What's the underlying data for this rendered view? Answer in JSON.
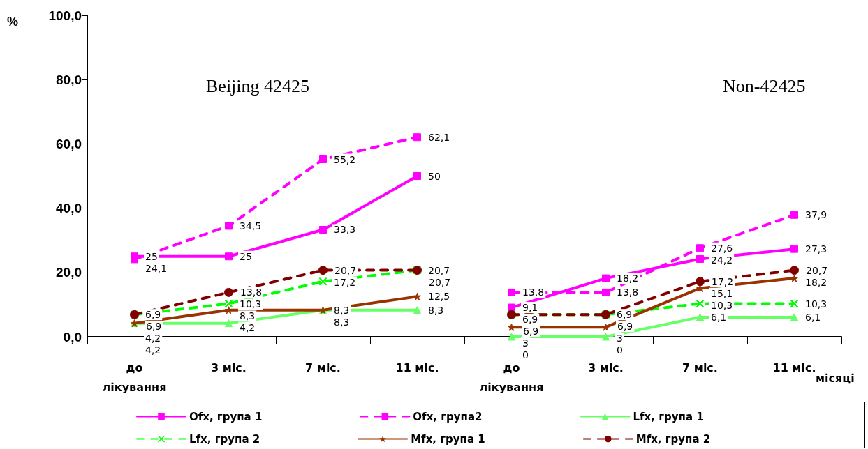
{
  "chart_data": {
    "type": "line",
    "ylabel": "%",
    "xlabel": "місяці",
    "annotations": [
      "Beijing 42425",
      "Non-42425"
    ],
    "categories": [
      "до лікування",
      "3 міс.",
      "7 міс.",
      "11 міс.",
      "до лікування",
      "3 міс.",
      "7 міс.",
      "11 міс."
    ],
    "ylim": [
      0,
      100
    ],
    "yticks": [
      {
        "value": 0,
        "label": "0,0"
      },
      {
        "value": 20,
        "label": "20,0"
      },
      {
        "value": 40,
        "label": "40,0"
      },
      {
        "value": 60,
        "label": "60,0"
      },
      {
        "value": 80,
        "label": "80,0"
      },
      {
        "value": 100,
        "label": "100,0"
      }
    ],
    "grid": false,
    "legend": "bottom",
    "series": [
      {
        "name": "Ofx, група 1",
        "color": "#ff00ff",
        "marker": "square",
        "line_style": "solid",
        "values": [
          25,
          25,
          33.3,
          50,
          null,
          null,
          null,
          null
        ],
        "value_labels": [
          "25",
          "25",
          "33,3",
          "50",
          null,
          null,
          null,
          null
        ]
      },
      {
        "name": "Ofx, група2",
        "color": "#ff00ff",
        "marker": "square",
        "line_style": "dashed",
        "values": [
          24.1,
          34.5,
          55.2,
          62.1,
          null,
          null,
          null,
          null
        ],
        "value_labels": [
          "24,1",
          "34,5",
          "55,2",
          "62,1",
          null,
          null,
          null,
          null
        ]
      },
      {
        "name": "Lfx, група 1",
        "color": "#66ff66",
        "marker": "triangle",
        "line_style": "solid",
        "values": [
          4.2,
          4.2,
          8.3,
          8.3,
          null,
          null,
          null,
          null
        ],
        "value_labels": [
          "4,2",
          "4,2",
          "8,3",
          "8,3",
          null,
          null,
          null,
          null
        ]
      },
      {
        "name": "Lfx, група 2",
        "color": "#00ff00",
        "marker": "cross",
        "line_style": "dashed",
        "values": [
          6.9,
          10.3,
          17.2,
          20.7,
          null,
          null,
          null,
          null
        ],
        "value_labels": [
          "6,9",
          "10,3",
          "17,2",
          "20,7",
          null,
          null,
          null,
          null
        ]
      },
      {
        "name": "Mfx, група 1",
        "color": "#993300",
        "marker": "star",
        "line_style": "solid",
        "values": [
          4.2,
          8.3,
          8.3,
          12.5,
          null,
          null,
          null,
          null
        ],
        "value_labels": [
          "4,2",
          "8,3",
          "8,3",
          "12,5",
          null,
          null,
          null,
          null
        ]
      },
      {
        "name": "Mfx, група 2",
        "color": "#800000",
        "marker": "circle",
        "line_style": "dashed",
        "values": [
          6.9,
          13.8,
          20.7,
          20.7,
          null,
          null,
          null,
          null
        ],
        "value_labels": [
          "6,9",
          "13,8",
          "20,7",
          "20,7",
          null,
          null,
          null,
          null
        ]
      },
      {
        "color": "#ff00ff",
        "marker": "square",
        "line_style": "solid",
        "values": [
          null,
          null,
          null,
          null,
          9.1,
          18.2,
          24.2,
          27.3
        ],
        "value_labels": [
          null,
          null,
          null,
          null,
          "9,1",
          "18,2",
          "24,2",
          "27,3"
        ]
      },
      {
        "color": "#ff00ff",
        "marker": "square",
        "line_style": "dashed",
        "values": [
          null,
          null,
          null,
          null,
          13.8,
          13.8,
          27.6,
          37.9
        ],
        "value_labels": [
          null,
          null,
          null,
          null,
          "13,8",
          "13,8",
          "27,6",
          "37,9"
        ]
      },
      {
        "color": "#66ff66",
        "marker": "triangle",
        "line_style": "solid",
        "values": [
          null,
          null,
          null,
          null,
          0,
          0,
          6.1,
          6.1
        ],
        "value_labels": [
          null,
          null,
          null,
          null,
          "0",
          "0",
          "6,1",
          "6,1"
        ]
      },
      {
        "color": "#00ff00",
        "marker": "cross",
        "line_style": "dashed",
        "values": [
          null,
          null,
          null,
          null,
          6.9,
          6.9,
          10.3,
          10.3
        ],
        "value_labels": [
          null,
          null,
          null,
          null,
          "6,9",
          "6,9",
          "10,3",
          "10,3"
        ]
      },
      {
        "color": "#993300",
        "marker": "star",
        "line_style": "solid",
        "values": [
          null,
          null,
          null,
          null,
          3,
          3,
          15.1,
          18.2
        ],
        "value_labels": [
          null,
          null,
          null,
          null,
          "3",
          "3",
          "15,1",
          "18,2"
        ]
      },
      {
        "color": "#800000",
        "marker": "circle",
        "line_style": "dashed",
        "values": [
          null,
          null,
          null,
          null,
          6.9,
          6.9,
          17.2,
          20.7
        ],
        "value_labels": [
          null,
          null,
          null,
          null,
          "6,9",
          "6,9",
          "17,2",
          "20,7"
        ]
      }
    ]
  }
}
